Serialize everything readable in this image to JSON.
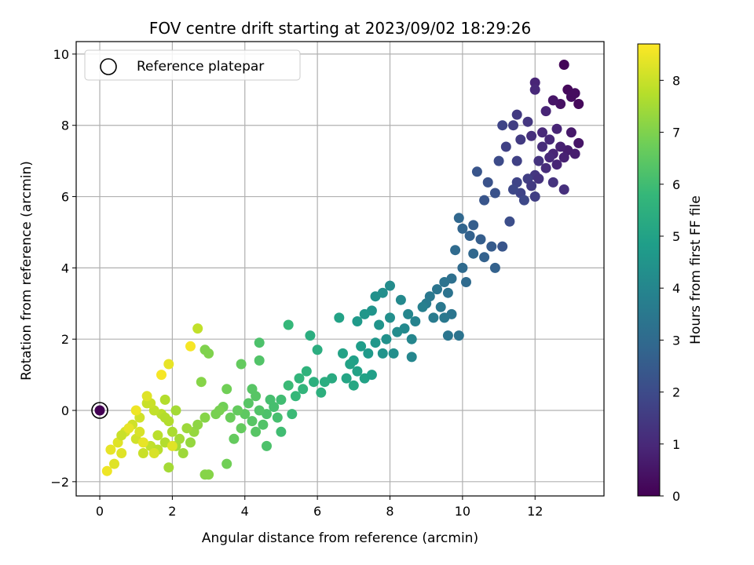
{
  "chart_data": {
    "type": "scatter",
    "title": "FOV centre drift starting at 2023/09/02 18:29:26",
    "xlabel": "Angular distance from reference (arcmin)",
    "ylabel": "Rotation from reference (arcmin)",
    "xlim": [
      -0.65,
      13.9
    ],
    "ylim": [
      -2.4,
      10.35
    ],
    "xticks": [
      0,
      2,
      4,
      6,
      8,
      10,
      12
    ],
    "yticks": [
      -2,
      0,
      2,
      4,
      6,
      8,
      10
    ],
    "grid": true,
    "legend": {
      "position": "top-left",
      "label": "Reference platepar"
    },
    "reference_point": {
      "x": 0,
      "y": 0
    },
    "colorbar": {
      "label": "Hours from first FF file",
      "range": [
        0,
        8.7
      ],
      "ticks": [
        0,
        1,
        2,
        3,
        4,
        5,
        6,
        7,
        8
      ],
      "colormap": [
        "#440154",
        "#482878",
        "#3e4989",
        "#31688e",
        "#26828e",
        "#1f9e89",
        "#35b779",
        "#6ece58",
        "#b5de2b",
        "#fde725"
      ]
    },
    "series": [
      {
        "points": [
          [
            12.8,
            9.7,
            0.1
          ],
          [
            12.9,
            9.0,
            0.2
          ],
          [
            13.0,
            8.8,
            0.3
          ],
          [
            13.2,
            8.6,
            0.2
          ],
          [
            12.7,
            8.6,
            0.4
          ],
          [
            12.5,
            8.7,
            0.5
          ],
          [
            13.1,
            8.9,
            0.3
          ],
          [
            12.0,
            9.2,
            0.9
          ],
          [
            12.0,
            9.0,
            1.0
          ],
          [
            12.3,
            8.4,
            0.9
          ],
          [
            12.6,
            7.9,
            0.9
          ],
          [
            12.4,
            7.6,
            1.0
          ],
          [
            13.0,
            7.8,
            0.6
          ],
          [
            13.2,
            7.5,
            0.5
          ],
          [
            12.9,
            7.3,
            0.7
          ],
          [
            12.5,
            7.2,
            0.9
          ],
          [
            12.2,
            7.4,
            1.1
          ],
          [
            12.1,
            7.0,
            1.3
          ],
          [
            12.8,
            7.1,
            0.8
          ],
          [
            13.1,
            7.2,
            0.7
          ],
          [
            12.6,
            6.9,
            0.9
          ],
          [
            12.3,
            6.8,
            1.1
          ],
          [
            12.0,
            6.6,
            1.4
          ],
          [
            11.8,
            6.5,
            1.6
          ],
          [
            11.6,
            6.1,
            1.8
          ],
          [
            11.9,
            6.3,
            1.5
          ],
          [
            11.5,
            6.4,
            1.8
          ],
          [
            11.7,
            5.9,
            1.9
          ],
          [
            11.4,
            6.2,
            1.9
          ],
          [
            12.0,
            6.0,
            1.6
          ],
          [
            12.5,
            6.4,
            1.3
          ],
          [
            12.8,
            6.2,
            1.2
          ],
          [
            11.2,
            7.4,
            1.7
          ],
          [
            11.5,
            7.0,
            1.7
          ],
          [
            11.6,
            7.6,
            1.5
          ],
          [
            11.4,
            8.0,
            1.6
          ],
          [
            11.5,
            8.3,
            1.5
          ],
          [
            11.8,
            8.1,
            1.4
          ],
          [
            11.1,
            8.0,
            1.8
          ],
          [
            11.0,
            7.0,
            2.0
          ],
          [
            10.7,
            6.4,
            2.2
          ],
          [
            10.4,
            6.7,
            2.3
          ],
          [
            10.9,
            6.1,
            2.2
          ],
          [
            10.6,
            5.9,
            2.3
          ],
          [
            10.3,
            5.2,
            2.6
          ],
          [
            10.0,
            5.1,
            2.8
          ],
          [
            10.2,
            4.9,
            2.7
          ],
          [
            10.5,
            4.8,
            2.6
          ],
          [
            10.8,
            4.6,
            2.5
          ],
          [
            10.6,
            4.3,
            2.7
          ],
          [
            10.3,
            4.4,
            2.9
          ],
          [
            10.0,
            4.0,
            3.0
          ],
          [
            9.8,
            4.5,
            3.0
          ],
          [
            9.9,
            5.4,
            2.9
          ],
          [
            10.9,
            4.0,
            2.7
          ],
          [
            11.1,
            4.6,
            2.3
          ],
          [
            11.3,
            5.3,
            2.1
          ],
          [
            9.7,
            3.7,
            3.2
          ],
          [
            9.5,
            3.6,
            3.3
          ],
          [
            9.6,
            3.3,
            3.3
          ],
          [
            9.3,
            3.4,
            3.4
          ],
          [
            9.1,
            3.2,
            3.5
          ],
          [
            9.0,
            3.0,
            3.6
          ],
          [
            9.4,
            2.9,
            3.5
          ],
          [
            9.7,
            2.7,
            3.4
          ],
          [
            9.5,
            2.6,
            3.5
          ],
          [
            9.2,
            2.6,
            3.6
          ],
          [
            9.6,
            2.1,
            3.4
          ],
          [
            9.9,
            2.1,
            3.3
          ],
          [
            10.1,
            3.6,
            3.0
          ],
          [
            8.9,
            2.9,
            3.8
          ],
          [
            8.7,
            2.5,
            3.9
          ],
          [
            8.5,
            2.7,
            4.0
          ],
          [
            8.4,
            2.3,
            4.1
          ],
          [
            8.6,
            2.0,
            4.0
          ],
          [
            8.6,
            1.5,
            4.0
          ],
          [
            8.2,
            2.2,
            4.2
          ],
          [
            8.0,
            2.6,
            4.3
          ],
          [
            7.9,
            2.0,
            4.4
          ],
          [
            7.8,
            1.6,
            4.5
          ],
          [
            8.1,
            1.6,
            4.3
          ],
          [
            8.3,
            3.1,
            4.1
          ],
          [
            8.0,
            3.5,
            4.2
          ],
          [
            7.8,
            3.3,
            4.3
          ],
          [
            7.6,
            3.2,
            4.4
          ],
          [
            7.5,
            2.8,
            4.5
          ],
          [
            7.3,
            2.7,
            4.6
          ],
          [
            7.1,
            2.5,
            4.7
          ],
          [
            7.7,
            2.4,
            4.5
          ],
          [
            7.6,
            1.9,
            4.6
          ],
          [
            7.4,
            1.6,
            4.7
          ],
          [
            7.2,
            1.8,
            4.8
          ],
          [
            7.0,
            1.4,
            4.9
          ],
          [
            7.1,
            1.1,
            5.0
          ],
          [
            6.9,
            1.3,
            5.0
          ],
          [
            6.8,
            0.9,
            5.1
          ],
          [
            7.0,
            0.7,
            5.2
          ],
          [
            7.3,
            0.9,
            5.0
          ],
          [
            7.5,
            1.0,
            4.9
          ],
          [
            6.7,
            1.6,
            5.0
          ],
          [
            6.6,
            2.6,
            5.0
          ],
          [
            6.4,
            0.9,
            5.3
          ],
          [
            6.2,
            0.8,
            5.4
          ],
          [
            6.1,
            0.5,
            5.5
          ],
          [
            5.9,
            0.8,
            5.5
          ],
          [
            5.7,
            1.1,
            5.6
          ],
          [
            5.6,
            0.6,
            5.7
          ],
          [
            5.4,
            0.4,
            5.8
          ],
          [
            5.2,
            0.7,
            5.9
          ],
          [
            5.0,
            0.3,
            6.0
          ],
          [
            4.8,
            0.1,
            6.1
          ],
          [
            4.6,
            -0.1,
            6.2
          ],
          [
            4.4,
            0.0,
            6.3
          ],
          [
            4.2,
            -0.3,
            6.4
          ],
          [
            4.0,
            -0.1,
            6.5
          ],
          [
            3.8,
            0.0,
            6.6
          ],
          [
            3.6,
            -0.2,
            6.7
          ],
          [
            3.4,
            0.1,
            6.8
          ],
          [
            3.2,
            -0.1,
            6.9
          ],
          [
            4.3,
            -0.6,
            6.4
          ],
          [
            4.5,
            -0.4,
            6.3
          ],
          [
            4.9,
            -0.2,
            6.1
          ],
          [
            5.3,
            -0.1,
            5.9
          ],
          [
            4.1,
            0.2,
            6.4
          ],
          [
            3.9,
            -0.5,
            6.6
          ],
          [
            3.7,
            -0.8,
            6.6
          ],
          [
            4.7,
            0.3,
            6.1
          ],
          [
            5.5,
            0.9,
            5.7
          ],
          [
            5.8,
            2.1,
            5.4
          ],
          [
            6.0,
            1.7,
            5.4
          ],
          [
            5.2,
            2.4,
            5.8
          ],
          [
            4.4,
            1.9,
            6.2
          ],
          [
            3.5,
            0.6,
            6.8
          ],
          [
            3.5,
            -1.5,
            6.8
          ],
          [
            4.4,
            1.4,
            6.3
          ],
          [
            4.2,
            0.6,
            6.4
          ],
          [
            3.9,
            1.3,
            6.6
          ],
          [
            4.3,
            0.4,
            6.4
          ],
          [
            4.6,
            -1.0,
            6.2
          ],
          [
            5.0,
            -0.6,
            6.0
          ],
          [
            2.9,
            1.7,
            7.0
          ],
          [
            3.0,
            1.6,
            7.0
          ],
          [
            2.9,
            -1.8,
            7.1
          ],
          [
            3.0,
            -1.8,
            7.1
          ],
          [
            2.8,
            0.8,
            7.1
          ],
          [
            2.6,
            -0.6,
            7.3
          ],
          [
            2.4,
            -0.5,
            7.4
          ],
          [
            2.2,
            -0.8,
            7.5
          ],
          [
            2.0,
            -0.6,
            7.6
          ],
          [
            2.5,
            -0.9,
            7.3
          ],
          [
            2.7,
            -0.4,
            7.2
          ],
          [
            2.9,
            -0.2,
            7.1
          ],
          [
            2.3,
            -1.2,
            7.4
          ],
          [
            2.1,
            -1.0,
            7.5
          ],
          [
            1.8,
            -0.9,
            7.7
          ],
          [
            1.6,
            -0.7,
            7.8
          ],
          [
            1.9,
            -0.3,
            7.7
          ],
          [
            1.7,
            -0.1,
            7.8
          ],
          [
            1.5,
            0.0,
            7.9
          ],
          [
            1.3,
            0.2,
            8.0
          ],
          [
            1.1,
            -0.2,
            8.1
          ],
          [
            0.9,
            -0.4,
            8.1
          ],
          [
            0.7,
            -0.6,
            8.2
          ],
          [
            0.5,
            -0.9,
            8.3
          ],
          [
            0.3,
            -1.1,
            8.4
          ],
          [
            0.2,
            -1.7,
            8.5
          ],
          [
            0.6,
            -1.2,
            8.3
          ],
          [
            1.0,
            -0.8,
            8.1
          ],
          [
            1.2,
            -1.2,
            8.0
          ],
          [
            1.4,
            -1.0,
            7.9
          ],
          [
            1.6,
            -1.1,
            7.8
          ],
          [
            1.8,
            -0.2,
            7.7
          ],
          [
            2.1,
            0.0,
            7.5
          ],
          [
            1.4,
            0.2,
            8.0
          ],
          [
            1.8,
            0.3,
            7.7
          ],
          [
            2.7,
            2.3,
            7.9
          ],
          [
            2.5,
            1.8,
            8.6
          ],
          [
            1.9,
            1.3,
            8.4
          ],
          [
            1.7,
            1.0,
            8.6
          ],
          [
            1.3,
            0.4,
            8.3
          ],
          [
            1.0,
            0.0,
            8.5
          ],
          [
            0.8,
            -0.5,
            8.4
          ],
          [
            1.2,
            -0.9,
            8.4
          ],
          [
            1.5,
            -1.2,
            8.2
          ],
          [
            2.0,
            -1.0,
            8.3
          ],
          [
            0.4,
            -1.5,
            8.3
          ],
          [
            1.9,
            -1.6,
            7.5
          ],
          [
            0.6,
            -0.7,
            8.0
          ],
          [
            1.1,
            -0.6,
            8.2
          ],
          [
            3.3,
            0.0,
            6.9
          ],
          [
            11.9,
            7.7,
            1.2
          ],
          [
            12.2,
            7.8,
            1.0
          ],
          [
            12.7,
            7.4,
            0.8
          ],
          [
            12.4,
            7.1,
            1.0
          ],
          [
            12.1,
            6.5,
            1.3
          ]
        ]
      }
    ]
  }
}
